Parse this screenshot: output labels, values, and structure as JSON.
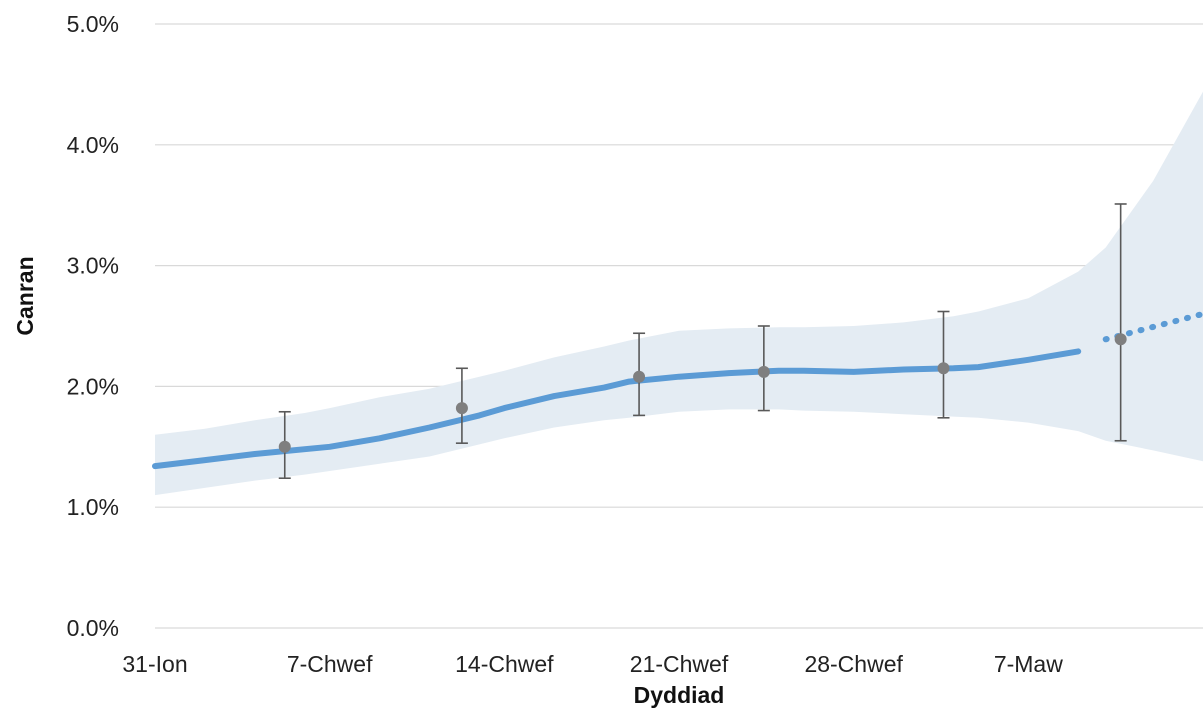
{
  "chart_data": {
    "type": "line",
    "title": "",
    "xlabel": "Dyddiad",
    "ylabel": "Canran",
    "x_tick_labels": [
      {
        "label": "31-Ion",
        "day": 0
      },
      {
        "label": "7-Chwef",
        "day": 7
      },
      {
        "label": "14-Chwef",
        "day": 14
      },
      {
        "label": "21-Chwef",
        "day": 21
      },
      {
        "label": "28-Chwef",
        "day": 28
      },
      {
        "label": "7-Maw",
        "day": 35
      }
    ],
    "xlim": [
      0,
      42
    ],
    "ylim": [
      0,
      5
    ],
    "y_ticks": [
      0,
      1,
      2,
      3,
      4,
      5
    ],
    "y_tick_labels": [
      "0.0%",
      "1.0%",
      "2.0%",
      "3.0%",
      "4.0%",
      "5.0%"
    ],
    "grid": true,
    "colors": {
      "line": "#5b9bd5",
      "band": "#e4ecf3",
      "marker": "#7f7f7f",
      "errorbar": "#595959"
    },
    "series": [
      {
        "style": "solid",
        "x": [
          0,
          2,
          4,
          6,
          7,
          9,
          11,
          13,
          14,
          16,
          18,
          19,
          21,
          23,
          25,
          26,
          28,
          30,
          32,
          33,
          35,
          37
        ],
        "y": [
          1.34,
          1.39,
          1.44,
          1.48,
          1.5,
          1.57,
          1.66,
          1.76,
          1.82,
          1.92,
          1.99,
          2.04,
          2.08,
          2.11,
          2.13,
          2.13,
          2.12,
          2.14,
          2.15,
          2.16,
          2.22,
          2.29
        ]
      },
      {
        "style": "dotted",
        "x": [
          38.1,
          42
        ],
        "y": [
          2.39,
          2.6
        ]
      }
    ],
    "uncertainty_band": {
      "x": [
        0,
        2,
        4,
        6,
        7,
        9,
        11,
        13,
        14,
        16,
        18,
        19,
        21,
        23,
        25,
        26,
        28,
        30,
        32,
        33,
        35,
        37,
        38.1,
        40,
        42
      ],
      "upper": [
        1.6,
        1.65,
        1.72,
        1.78,
        1.82,
        1.91,
        1.98,
        2.08,
        2.13,
        2.24,
        2.33,
        2.38,
        2.46,
        2.48,
        2.49,
        2.49,
        2.5,
        2.53,
        2.58,
        2.62,
        2.73,
        2.95,
        3.15,
        3.7,
        4.44
      ],
      "lower": [
        1.1,
        1.16,
        1.22,
        1.27,
        1.3,
        1.36,
        1.42,
        1.52,
        1.57,
        1.66,
        1.72,
        1.74,
        1.79,
        1.81,
        1.81,
        1.8,
        1.79,
        1.77,
        1.75,
        1.74,
        1.7,
        1.63,
        1.55,
        1.47,
        1.38
      ]
    },
    "points": [
      {
        "x": 5.2,
        "y": 1.5,
        "lower": 1.24,
        "upper": 1.79
      },
      {
        "x": 12.3,
        "y": 1.82,
        "lower": 1.53,
        "upper": 2.15
      },
      {
        "x": 19.4,
        "y": 2.08,
        "lower": 1.76,
        "upper": 2.44
      },
      {
        "x": 24.4,
        "y": 2.12,
        "lower": 1.8,
        "upper": 2.5
      },
      {
        "x": 31.6,
        "y": 2.15,
        "lower": 1.74,
        "upper": 2.62
      },
      {
        "x": 38.7,
        "y": 2.39,
        "lower": 1.55,
        "upper": 3.51
      }
    ]
  }
}
